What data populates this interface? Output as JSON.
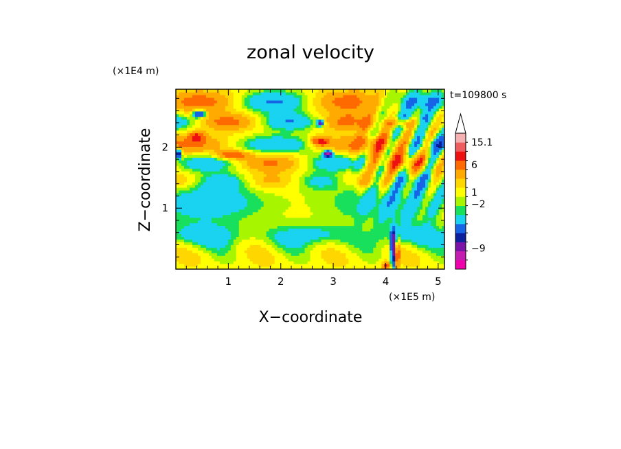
{
  "chart_data": {
    "type": "heatmap",
    "title": "zonal velocity",
    "xlabel": "X−coordinate",
    "ylabel": "Z−coordinate",
    "x_unit": "(×1E5 m)",
    "y_unit": "(×1E4 m)",
    "time_label": "t=109800 s",
    "xlim": [
      0,
      5.12
    ],
    "ylim": [
      0,
      2.95
    ],
    "x_ticks": [
      1,
      2,
      3,
      4,
      5
    ],
    "x_tick_labels": [
      "1",
      "2",
      "3",
      "4",
      "5"
    ],
    "y_ticks": [
      1,
      2
    ],
    "y_tick_labels": [
      "1",
      "2"
    ],
    "grid": false,
    "colorbar": {
      "placement": "right",
      "extend": "max",
      "colors": [
        "#ee00aa",
        "#c41eb0",
        "#7b14a6",
        "#0c1f9c",
        "#1764e6",
        "#19d3f0",
        "#19e05c",
        "#a8f500",
        "#ffff00",
        "#ffd700",
        "#ffaa00",
        "#ff6a00",
        "#ee1111",
        "#ee5e5e",
        "#f5b1b1"
      ],
      "labels": [
        {
          "text": "15.1",
          "level": 14
        },
        {
          "text": "6",
          "level": 11.5
        },
        {
          "text": "1",
          "level": 8.5
        },
        {
          "text": "−2",
          "level": 7.2
        },
        {
          "text": "−9",
          "level": 2.3
        }
      ],
      "extend_color": "#ffffff"
    }
  }
}
